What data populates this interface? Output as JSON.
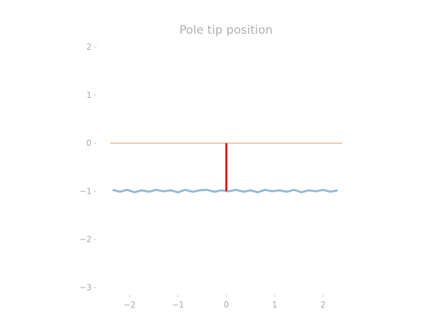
{
  "chart_data": {
    "type": "line",
    "title": "Pole tip position",
    "xlabel": "",
    "ylabel": "",
    "xlim": [
      -2.4,
      2.4
    ],
    "ylim": [
      -3.0,
      2.0
    ],
    "xticks": [
      -2,
      -1,
      0,
      1,
      2
    ],
    "xtick_labels": [
      "−2",
      "−1",
      "0",
      "1",
      "2"
    ],
    "yticks": [
      2,
      1,
      0,
      -1,
      -2,
      -3
    ],
    "ytick_labels": [
      "2",
      "1",
      "0",
      "−1",
      "−2",
      "−3"
    ],
    "grid": false,
    "series": [
      {
        "role": "pole tip trajectory",
        "color": "#8fbad9",
        "x": [
          -2.35,
          -2.2,
          -2.05,
          -1.9,
          -1.75,
          -1.6,
          -1.45,
          -1.3,
          -1.15,
          -1.0,
          -0.85,
          -0.7,
          -0.55,
          -0.4,
          -0.25,
          -0.1,
          0.05,
          0.2,
          0.35,
          0.5,
          0.65,
          0.8,
          0.95,
          1.1,
          1.25,
          1.4,
          1.55,
          1.7,
          1.85,
          2.0,
          2.15,
          2.3
        ],
        "y": [
          -0.97,
          -1.01,
          -0.97,
          -1.02,
          -0.98,
          -1.01,
          -0.97,
          -1.0,
          -0.98,
          -1.02,
          -0.97,
          -1.01,
          -0.98,
          -0.97,
          -1.01,
          -0.98,
          -1.0,
          -0.97,
          -1.01,
          -0.98,
          -1.02,
          -0.97,
          -1.0,
          -0.98,
          -1.01,
          -0.97,
          -1.02,
          -0.98,
          -1.0,
          -0.97,
          -1.01,
          -0.98
        ]
      },
      {
        "role": "reference line at zero",
        "color": "#f4b183",
        "x": [
          -2.4,
          2.4
        ],
        "y": [
          0,
          0
        ]
      },
      {
        "role": "current pole",
        "color": "#e8151b",
        "x": [
          0,
          0
        ],
        "y": [
          0,
          -1
        ]
      }
    ]
  }
}
